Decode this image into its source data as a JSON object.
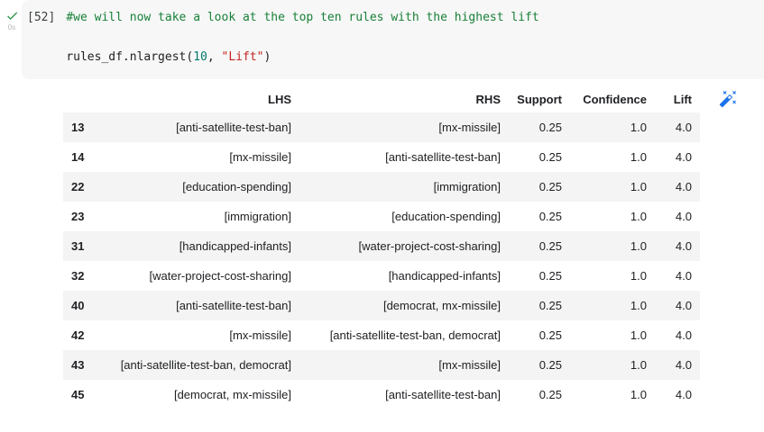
{
  "gutter": {
    "status": "success",
    "duration": "0s"
  },
  "code_cell": {
    "execution_count": "[52]",
    "comment_line": "#we will now take a look at the top ten rules with the highest lift",
    "code_prefix": "rules_df.nlargest(",
    "code_arg_number": "10",
    "code_arg_separator": ", ",
    "code_arg_string": "\"Lift\"",
    "code_suffix": ")"
  },
  "colors": {
    "comment_green": "#188038",
    "number_teal": "#00796b",
    "string_red": "#c5221f",
    "accent_blue": "#1a73e8",
    "check_green": "#1e8e3e",
    "row_stripe": "#f4f4f4",
    "code_bg": "#f7f7f7"
  },
  "output_table": {
    "index_header": "",
    "columns": [
      "LHS",
      "RHS",
      "Support",
      "Confidence",
      "Lift"
    ],
    "cell_names": [
      "row-index",
      "cell-lhs",
      "cell-rhs",
      "cell-support",
      "cell-confidence",
      "cell-lift"
    ],
    "rows": [
      [
        "13",
        "[anti-satellite-test-ban]",
        "[mx-missile]",
        "0.25",
        "1.0",
        "4.0"
      ],
      [
        "14",
        "[mx-missile]",
        "[anti-satellite-test-ban]",
        "0.25",
        "1.0",
        "4.0"
      ],
      [
        "22",
        "[education-spending]",
        "[immigration]",
        "0.25",
        "1.0",
        "4.0"
      ],
      [
        "23",
        "[immigration]",
        "[education-spending]",
        "0.25",
        "1.0",
        "4.0"
      ],
      [
        "31",
        "[handicapped-infants]",
        "[water-project-cost-sharing]",
        "0.25",
        "1.0",
        "4.0"
      ],
      [
        "32",
        "[water-project-cost-sharing]",
        "[handicapped-infants]",
        "0.25",
        "1.0",
        "4.0"
      ],
      [
        "40",
        "[anti-satellite-test-ban]",
        "[democrat, mx-missile]",
        "0.25",
        "1.0",
        "4.0"
      ],
      [
        "42",
        "[mx-missile]",
        "[anti-satellite-test-ban, democrat]",
        "0.25",
        "1.0",
        "4.0"
      ],
      [
        "43",
        "[anti-satellite-test-ban, democrat]",
        "[mx-missile]",
        "0.25",
        "1.0",
        "4.0"
      ],
      [
        "45",
        "[democrat, mx-missile]",
        "[anti-satellite-test-ban]",
        "0.25",
        "1.0",
        "4.0"
      ]
    ]
  },
  "icons": {
    "magic_wand": "suggest-charts",
    "check": "cell-executed"
  }
}
